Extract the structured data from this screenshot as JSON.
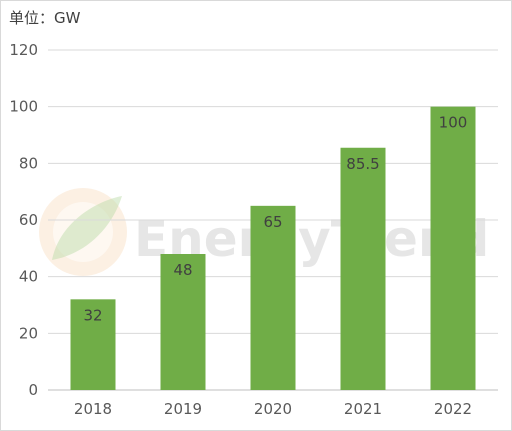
{
  "unit_label": "单位：GW",
  "watermark": {
    "text": "EnergyTrend",
    "logo": "energytrend-leaf-logo"
  },
  "colors": {
    "bar": "#70ad47",
    "grid": "#d9d9d9",
    "axis": "#bfbfbf",
    "text": "#595959"
  },
  "chart_data": {
    "type": "bar",
    "title": "",
    "xlabel": "",
    "ylabel": "",
    "categories": [
      "2018",
      "2019",
      "2020",
      "2021",
      "2022"
    ],
    "values": [
      32,
      48,
      65,
      85.5,
      100
    ],
    "data_labels": [
      "32",
      "48",
      "65",
      "85.5",
      "100"
    ],
    "ylim": [
      0,
      120
    ],
    "yticks": [
      0,
      20,
      40,
      60,
      80,
      100,
      120
    ],
    "ytick_labels": [
      "0",
      "20",
      "40",
      "60",
      "80",
      "100",
      "120"
    ],
    "grid": true,
    "legend": "none"
  }
}
